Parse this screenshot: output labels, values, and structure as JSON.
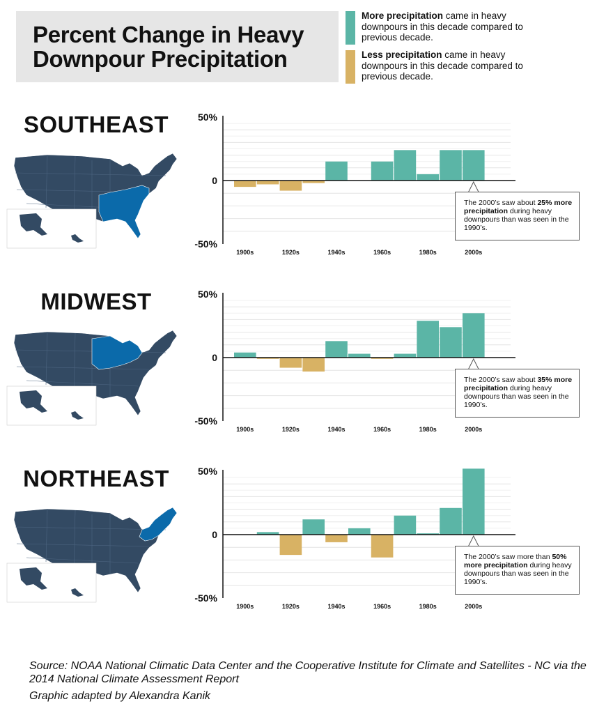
{
  "title": {
    "line1": "Percent Change in Heavy",
    "line2": "Downpour Precipitation"
  },
  "legend": {
    "more": {
      "bold": "More precipitation",
      "rest": " came in heavy downpours in this decade compared to previous decade.",
      "color": "#5bb5a6"
    },
    "less": {
      "bold": "Less precipitation",
      "rest": " came in heavy downpours in this decade compared to previous decade.",
      "color": "#d8b264"
    }
  },
  "colors": {
    "positive": "#5bb5a6",
    "negative": "#d8b264",
    "map_base": "#334a63",
    "map_highlight": "#0b6aaa",
    "grid": "#e4e4e4"
  },
  "regions": [
    {
      "name": "SOUTHEAST",
      "callout": {
        "pre": "The 2000’s saw about ",
        "bold": "25% more precipitation",
        "post": " during heavy downpours than was seen in the 1990’s."
      }
    },
    {
      "name": "MIDWEST",
      "callout": {
        "pre": "The 2000’s saw about ",
        "bold": "35% more precipitation",
        "post": " during heavy downpours than was seen in the 1990’s."
      }
    },
    {
      "name": "NORTHEAST",
      "callout": {
        "pre": "The 2000’s saw more than ",
        "bold": "50% more precipitation",
        "post": " during heavy downpours than was seen in the 1990’s."
      }
    }
  ],
  "chart_data": [
    {
      "type": "bar",
      "title": "SOUTHEAST",
      "categories": [
        "1900s",
        "1910s",
        "1920s",
        "1930s",
        "1940s",
        "1950s",
        "1960s",
        "1970s",
        "1980s",
        "1990s",
        "2000s"
      ],
      "tick_labels": [
        "1900s",
        "1920s",
        "1940s",
        "1960s",
        "1980s",
        "2000s"
      ],
      "y_ticks": [
        "50%",
        "0",
        "-50%"
      ],
      "ylim": [
        -50,
        50
      ],
      "values": [
        -5,
        -3,
        -8,
        -2,
        15,
        0,
        15,
        24,
        5,
        24,
        24
      ]
    },
    {
      "type": "bar",
      "title": "MIDWEST",
      "categories": [
        "1900s",
        "1910s",
        "1920s",
        "1930s",
        "1940s",
        "1950s",
        "1960s",
        "1970s",
        "1980s",
        "1990s",
        "2000s"
      ],
      "tick_labels": [
        "1900s",
        "1920s",
        "1940s",
        "1960s",
        "1980s",
        "2000s"
      ],
      "y_ticks": [
        "50%",
        "0",
        "-50%"
      ],
      "ylim": [
        -50,
        50
      ],
      "values": [
        4,
        -1,
        -8,
        -11,
        13,
        3,
        -1,
        3,
        29,
        24,
        35
      ]
    },
    {
      "type": "bar",
      "title": "NORTHEAST",
      "categories": [
        "1900s",
        "1910s",
        "1920s",
        "1930s",
        "1940s",
        "1950s",
        "1960s",
        "1970s",
        "1980s",
        "1990s",
        "2000s"
      ],
      "tick_labels": [
        "1900s",
        "1920s",
        "1940s",
        "1960s",
        "1980s",
        "2000s"
      ],
      "y_ticks": [
        "50%",
        "0",
        "-50%"
      ],
      "ylim": [
        -50,
        50
      ],
      "values": [
        0,
        2,
        -16,
        12,
        -6,
        5,
        -18,
        15,
        1,
        21,
        52
      ]
    }
  ],
  "source": {
    "line": "Source:  NOAA National Climatic Data Center and the Cooperative Institute for Climate and Satellites - NC via the 2014 National Climate Assessment Report",
    "credit": "Graphic adapted by Alexandra Kanik"
  }
}
